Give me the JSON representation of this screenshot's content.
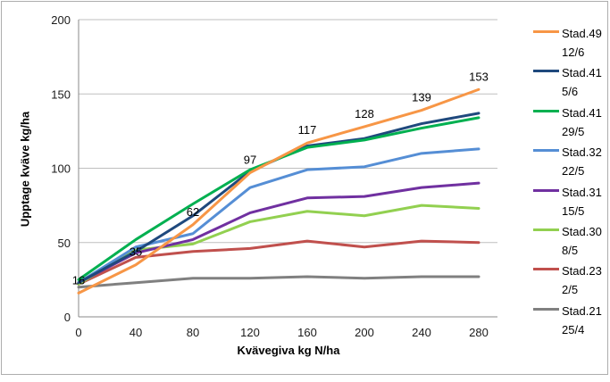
{
  "chart_data": {
    "type": "line",
    "title": "",
    "xlabel": "Kvävegiva kg N/ha",
    "ylabel": "Upptage kväve kg/ha",
    "x": [
      0,
      40,
      80,
      120,
      160,
      200,
      240,
      280
    ],
    "xticks": [
      0,
      40,
      80,
      120,
      160,
      200,
      240,
      280
    ],
    "yticks": [
      0,
      50,
      100,
      150,
      200
    ],
    "ylim": [
      0,
      200
    ],
    "grid": true,
    "legend_position": "right",
    "colors": {
      "axis_line": "#898989",
      "gridline": "#bfbfbf",
      "tick_text": "#1a1a1a",
      "label_text": "#000000"
    },
    "series": [
      {
        "name": "Stad.49",
        "date": "12/6",
        "color": "#f79646",
        "values": [
          16,
          35,
          62,
          97,
          117,
          128,
          139,
          153
        ],
        "show_labels": true
      },
      {
        "name": "Stad.41",
        "date": "5/6",
        "color": "#1f497d",
        "values": [
          23,
          44,
          68,
          98,
          115,
          120,
          130,
          137
        ],
        "show_labels": false
      },
      {
        "name": "Stad.41",
        "date": "29/5",
        "color": "#00b050",
        "values": [
          25,
          52,
          76,
          99,
          114,
          119,
          127,
          134
        ],
        "show_labels": false
      },
      {
        "name": "Stad.32",
        "date": "22/5",
        "color": "#558ed5",
        "values": [
          23,
          47,
          56,
          87,
          99,
          101,
          110,
          113
        ],
        "show_labels": false
      },
      {
        "name": "Stad.31",
        "date": "15/5",
        "color": "#7030a0",
        "values": [
          23,
          43,
          52,
          70,
          80,
          81,
          87,
          90
        ],
        "show_labels": false
      },
      {
        "name": "Stad.30",
        "date": "8/5",
        "color": "#92d050",
        "values": [
          22,
          45,
          49,
          64,
          71,
          68,
          75,
          73
        ],
        "show_labels": false
      },
      {
        "name": "Stad.23",
        "date": "2/5",
        "color": "#c0504d",
        "values": [
          22,
          40,
          44,
          46,
          51,
          47,
          51,
          50
        ],
        "show_labels": false
      },
      {
        "name": "Stad.21",
        "date": "25/4",
        "color": "#808080",
        "values": [
          20,
          23,
          26,
          26,
          27,
          26,
          27,
          27
        ],
        "show_labels": false
      }
    ],
    "data_labels": [
      16,
      35,
      62,
      97,
      117,
      128,
      139,
      153
    ]
  }
}
